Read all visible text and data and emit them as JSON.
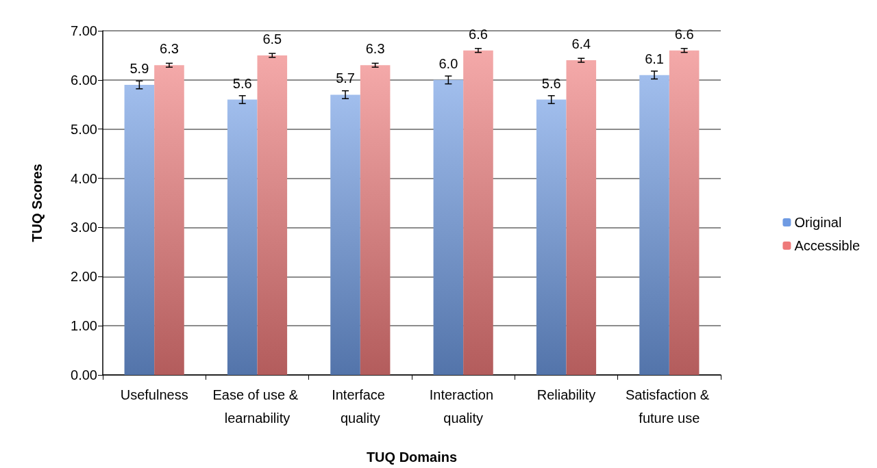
{
  "chart_data": {
    "type": "bar",
    "xlabel": "TUQ Domains",
    "ylabel": "TUQ Scores",
    "categories": [
      "Usefulness",
      "Ease of use & learnability",
      "Interface quality",
      "Interaction quality",
      "Reliability",
      "Satisfaction & future use"
    ],
    "series": [
      {
        "name": "Original",
        "color": "#6f9be3",
        "values": [
          5.9,
          5.6,
          5.7,
          6.0,
          5.6,
          6.1
        ],
        "value_labels": [
          "5.9",
          "5.6",
          "5.7",
          "6.0",
          "5.6",
          "6.1"
        ],
        "errors": [
          0.08,
          0.08,
          0.08,
          0.08,
          0.08,
          0.08
        ]
      },
      {
        "name": "Accessible",
        "color": "#ee7a7a",
        "values": [
          6.3,
          6.5,
          6.3,
          6.6,
          6.4,
          6.6
        ],
        "value_labels": [
          "6.3",
          "6.5",
          "6.3",
          "6.6",
          "6.4",
          "6.6"
        ],
        "errors": [
          0.04,
          0.04,
          0.04,
          0.04,
          0.04,
          0.04
        ]
      }
    ],
    "ylim": [
      0,
      7
    ],
    "yticks": [
      {
        "value": 0,
        "label": "0.00"
      },
      {
        "value": 1,
        "label": "1.00"
      },
      {
        "value": 2,
        "label": "2.00"
      },
      {
        "value": 3,
        "label": "3.00"
      },
      {
        "value": 4,
        "label": "4.00"
      },
      {
        "value": 5,
        "label": "5.00"
      },
      {
        "value": 6,
        "label": "6.00"
      },
      {
        "value": 7,
        "label": "7.00"
      }
    ],
    "grid": "y",
    "legend": "right"
  }
}
